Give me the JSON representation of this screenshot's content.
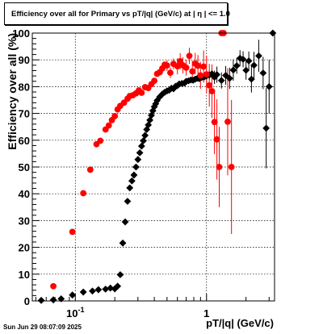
{
  "chart_data": {
    "type": "scatter",
    "title": "Efficiency over all for Primary vs pT/|q| (GeV/c) at |  η  | <= 1.0",
    "xlabel": "pT/|q| (GeV/c)",
    "ylabel": "Efficiency over all (%)",
    "xscale": "log",
    "xlim": [
      0.047,
      3.3
    ],
    "ylim": [
      0,
      100
    ],
    "x_tick_labels": [
      {
        "value": 0.1,
        "base": "10",
        "exp": "-1"
      },
      {
        "value": 1,
        "base": "1",
        "exp": ""
      }
    ],
    "y_ticks": [
      0,
      10,
      20,
      30,
      40,
      50,
      60,
      70,
      80,
      90,
      100
    ],
    "grid": true,
    "series": [
      {
        "color": "#000000",
        "marker": "diamond",
        "points": [
          [
            0.055,
            0.2,
            0,
            0
          ],
          [
            0.068,
            0.4,
            0,
            0
          ],
          [
            0.078,
            0.8,
            0,
            0
          ],
          [
            0.095,
            2.2,
            0,
            0
          ],
          [
            0.115,
            3.3,
            0,
            0
          ],
          [
            0.135,
            3.7,
            0,
            0
          ],
          [
            0.15,
            4.2,
            0,
            0
          ],
          [
            0.17,
            4.4,
            0,
            0
          ],
          [
            0.185,
            4.8,
            0,
            0
          ],
          [
            0.2,
            4.5,
            0,
            0
          ],
          [
            0.21,
            5.5,
            0,
            0
          ],
          [
            0.22,
            9.8,
            0,
            0
          ],
          [
            0.23,
            21.6,
            0,
            0
          ],
          [
            0.24,
            29.5,
            0,
            0
          ],
          [
            0.25,
            37.2,
            0,
            0
          ],
          [
            0.26,
            42.2,
            0,
            0
          ],
          [
            0.27,
            44.8,
            0,
            0
          ],
          [
            0.28,
            47.0,
            0,
            0
          ],
          [
            0.29,
            50.0,
            0,
            0
          ],
          [
            0.3,
            52.8,
            0,
            0
          ],
          [
            0.31,
            55.3,
            0,
            0
          ],
          [
            0.32,
            57.8,
            0,
            0
          ],
          [
            0.33,
            59.8,
            0,
            0
          ],
          [
            0.34,
            61.8,
            0,
            0
          ],
          [
            0.35,
            64.0,
            0,
            0
          ],
          [
            0.36,
            65.7,
            0,
            0
          ],
          [
            0.37,
            67.5,
            0,
            0
          ],
          [
            0.38,
            69.3,
            0,
            0
          ],
          [
            0.39,
            71.0,
            0,
            0
          ],
          [
            0.4,
            72.5,
            0,
            0
          ],
          [
            0.41,
            73.6,
            0,
            0
          ],
          [
            0.42,
            74.8,
            0,
            0
          ],
          [
            0.44,
            76.2,
            0,
            0
          ],
          [
            0.46,
            77.2,
            0,
            0
          ],
          [
            0.48,
            77.9,
            0,
            0
          ],
          [
            0.5,
            78.4,
            0,
            0
          ],
          [
            0.52,
            78.7,
            0,
            0
          ],
          [
            0.54,
            79.4,
            0,
            0
          ],
          [
            0.56,
            79.2,
            0,
            0
          ],
          [
            0.58,
            80.1,
            0,
            0
          ],
          [
            0.6,
            80.4,
            0,
            0
          ],
          [
            0.62,
            81.0,
            0,
            0
          ],
          [
            0.65,
            81.2,
            0,
            0
          ],
          [
            0.68,
            81.3,
            0,
            0
          ],
          [
            0.7,
            82.0,
            0,
            0
          ],
          [
            0.73,
            82.2,
            0,
            0
          ],
          [
            0.76,
            82.5,
            0,
            0
          ],
          [
            0.79,
            82.4,
            0,
            0
          ],
          [
            0.82,
            82.8,
            0,
            0
          ],
          [
            0.85,
            83.1,
            0,
            0
          ],
          [
            0.88,
            83.0,
            0,
            0
          ],
          [
            0.92,
            83.4,
            0,
            0
          ],
          [
            0.96,
            83.6,
            0,
            0
          ],
          [
            1.0,
            84.0,
            1.5,
            1.5
          ],
          [
            1.05,
            84.3,
            1.8,
            1.8
          ],
          [
            1.1,
            84.8,
            2,
            2
          ],
          [
            1.15,
            83.5,
            2.5,
            2.5
          ],
          [
            1.2,
            84.5,
            3,
            3
          ],
          [
            1.3,
            82.3,
            3,
            3
          ],
          [
            1.4,
            84.2,
            3.5,
            3.5
          ],
          [
            1.5,
            83.1,
            4,
            4
          ],
          [
            1.6,
            86.2,
            4,
            4
          ],
          [
            1.7,
            87.8,
            3,
            3
          ],
          [
            1.8,
            90.6,
            3,
            3
          ],
          [
            1.9,
            90.2,
            3,
            3
          ],
          [
            2.0,
            86.1,
            3.5,
            3.5
          ],
          [
            2.1,
            89.6,
            3.5,
            3.5
          ],
          [
            2.2,
            82.8,
            5,
            5
          ],
          [
            2.3,
            88.0,
            5,
            5
          ],
          [
            2.5,
            91.5,
            6,
            6
          ],
          [
            2.7,
            85.1,
            6,
            6
          ],
          [
            2.85,
            64.5,
            15,
            15
          ],
          [
            3.0,
            80.0,
            10,
            10
          ],
          [
            3.2,
            100.0,
            0,
            0
          ]
        ]
      },
      {
        "color": "#ff0000",
        "marker": "circle",
        "points": [
          [
            0.068,
            5.5,
            0,
            0
          ],
          [
            0.095,
            25.8,
            0,
            0
          ],
          [
            0.115,
            40.2,
            0,
            0
          ],
          [
            0.13,
            49.0,
            0,
            0
          ],
          [
            0.145,
            58.5,
            0,
            0
          ],
          [
            0.155,
            59.8,
            0,
            0
          ],
          [
            0.17,
            64.0,
            0,
            0
          ],
          [
            0.18,
            65.5,
            0,
            0
          ],
          [
            0.19,
            67.5,
            0,
            0
          ],
          [
            0.2,
            69.0,
            0,
            0
          ],
          [
            0.21,
            71.5,
            0,
            0
          ],
          [
            0.22,
            72.8,
            0,
            0
          ],
          [
            0.235,
            74.0,
            0,
            0
          ],
          [
            0.25,
            75.5,
            0,
            0
          ],
          [
            0.26,
            76.5,
            0,
            0
          ],
          [
            0.275,
            76.8,
            0,
            0
          ],
          [
            0.29,
            77.5,
            0,
            0
          ],
          [
            0.305,
            78.6,
            0,
            0
          ],
          [
            0.32,
            77.7,
            0,
            0
          ],
          [
            0.34,
            79.8,
            0,
            0
          ],
          [
            0.36,
            79.5,
            0,
            0
          ],
          [
            0.38,
            80.9,
            0,
            0
          ],
          [
            0.4,
            82.2,
            0,
            0
          ],
          [
            0.42,
            84.8,
            0,
            0
          ],
          [
            0.44,
            85.4,
            0,
            0
          ],
          [
            0.46,
            86.8,
            0,
            0
          ],
          [
            0.48,
            88.2,
            0,
            0
          ],
          [
            0.5,
            87.9,
            2,
            2
          ],
          [
            0.53,
            85.2,
            2,
            2
          ],
          [
            0.56,
            88.5,
            2,
            2
          ],
          [
            0.6,
            87.6,
            3,
            3
          ],
          [
            0.63,
            89.5,
            3,
            3
          ],
          [
            0.66,
            88.0,
            3,
            3
          ],
          [
            0.7,
            87.1,
            3,
            3
          ],
          [
            0.74,
            91.5,
            3,
            3
          ],
          [
            0.78,
            85.7,
            4,
            4
          ],
          [
            0.82,
            88.6,
            4,
            4
          ],
          [
            0.86,
            87.8,
            4,
            4
          ],
          [
            0.9,
            84.2,
            5,
            5
          ],
          [
            0.95,
            87.5,
            6,
            6
          ],
          [
            1.0,
            84.6,
            7,
            7
          ],
          [
            1.05,
            80.5,
            8,
            8
          ],
          [
            1.1,
            78.3,
            10,
            10
          ],
          [
            1.15,
            66.8,
            12,
            12
          ],
          [
            1.2,
            60.3,
            15,
            15
          ],
          [
            1.25,
            50.0,
            15,
            15
          ],
          [
            1.3,
            100.0,
            0,
            0
          ],
          [
            1.35,
            100.0,
            0,
            0
          ],
          [
            1.45,
            66.9,
            20,
            20
          ],
          [
            1.55,
            50.0,
            25,
            25
          ]
        ]
      }
    ]
  },
  "timestamp": "Sun Jun 29 08:07:09 2025"
}
